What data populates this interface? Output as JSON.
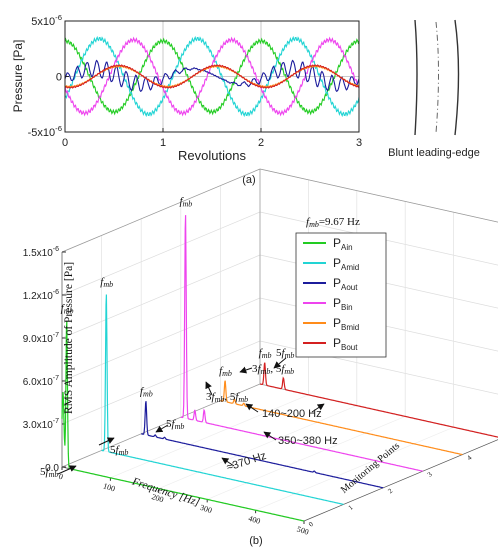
{
  "figure": {
    "caption_a": "(a)",
    "caption_b": "(b)",
    "blade_label": "Blunt leading-edge"
  },
  "chart_data": [
    {
      "type": "line",
      "xlabel": "Revolutions",
      "ylabel": "Pressure [Pa]",
      "xlim": [
        0,
        3
      ],
      "ylim": [
        -5e-06,
        5e-06
      ],
      "x_ticks": [
        "0",
        "1",
        "2",
        "3"
      ],
      "y_ticks": [
        {
          "mantissa": "5x10",
          "exp": "-6",
          "value": 5e-06
        },
        {
          "mantissa": "0",
          "exp": "",
          "value": 0
        },
        {
          "mantissa": "-5x10",
          "exp": "-6",
          "value": -5e-06
        }
      ],
      "grid": true,
      "series": [
        {
          "color": "#22cc22",
          "amplitude": 3.2e-06,
          "phase_rev": -0.25,
          "ripple": 0.0
        },
        {
          "color": "#22d4d4",
          "amplitude": 3.4e-06,
          "phase_rev": 0.1,
          "ripple": 0.0
        },
        {
          "color": "#ee44ee",
          "amplitude": 3.3e-06,
          "phase_rev": 0.45,
          "ripple": 0.0
        },
        {
          "color": "#1c1c9c",
          "amplitude": 7e-07,
          "phase_rev": 0.05,
          "ripple": 8e-07
        },
        {
          "color": "#ff8c1a",
          "amplitude": 9e-07,
          "phase_rev": 0.3,
          "ripple": 0.0
        },
        {
          "color": "#d42020",
          "amplitude": 1e-06,
          "phase_rev": 0.3,
          "ripple": 0.0
        }
      ]
    },
    {
      "type": "line",
      "xlabel": "Frequency [Hz]",
      "ylabel": "RMS Amplitude of Pressure [Pa]",
      "zlabel": "Monitoring Points",
      "xlim": [
        0,
        500
      ],
      "ylim": [
        0,
        1.5e-06
      ],
      "x_ticks": [
        "0",
        "100",
        "200",
        "300",
        "400",
        "500"
      ],
      "y_ticks": [
        {
          "mantissa": "0.0",
          "exp": "",
          "value": 0
        },
        {
          "mantissa": "3.0x10",
          "exp": "-7",
          "value": 3e-07
        },
        {
          "mantissa": "6.0x10",
          "exp": "-7",
          "value": 6e-07
        },
        {
          "mantissa": "9.0x10",
          "exp": "-7",
          "value": 9e-07
        },
        {
          "mantissa": "1.2x10",
          "exp": "-6",
          "value": 1.2e-06
        },
        {
          "mantissa": "1.5x10",
          "exp": "-6",
          "value": 1.5e-06
        }
      ],
      "z_ticks": [
        "0",
        "1",
        "2",
        "3",
        "4",
        "5"
      ],
      "fmb_note": {
        "sym": "f",
        "sub": "mb",
        "text": "=9.67 Hz"
      },
      "legend": [
        {
          "base": "P",
          "sub": "Ain",
          "color": "#22cc22"
        },
        {
          "base": "P",
          "sub": "Amid",
          "color": "#22d4d4"
        },
        {
          "base": "P",
          "sub": "Aout",
          "color": "#1c1c9c"
        },
        {
          "base": "P",
          "sub": "Bin",
          "color": "#ee44ee"
        },
        {
          "base": "P",
          "sub": "Bmid",
          "color": "#ff8c1a"
        },
        {
          "base": "P",
          "sub": "Bout",
          "color": "#d42020"
        }
      ],
      "series": [
        {
          "name": "P_Ain",
          "peak_hz": 9.67,
          "peak_value": 1.05e-06
        },
        {
          "name": "P_Amid",
          "peak_hz": 9.67,
          "peak_value": 1.12e-06
        },
        {
          "name": "P_Aout",
          "peak_hz": 9.67,
          "peak_value": 2.4e-07
        },
        {
          "name": "P_Bin",
          "peak_hz": 9.67,
          "peak_value": 1.45e-06
        },
        {
          "name": "P_Bmid",
          "peak_hz": 9.67,
          "peak_value": 1.5e-07
        },
        {
          "name": "P_Bout",
          "peak_hz": 9.67,
          "peak_value": 1.6e-07
        }
      ],
      "annotations": {
        "a_370": "≈370 Hz",
        "a_350_380": "350~380 Hz",
        "a_140_200": "140~200 Hz",
        "five": "5",
        "three": "3",
        "comma": ", ",
        "fmb_sym": "f",
        "fmb_sub": "mb"
      }
    }
  ]
}
